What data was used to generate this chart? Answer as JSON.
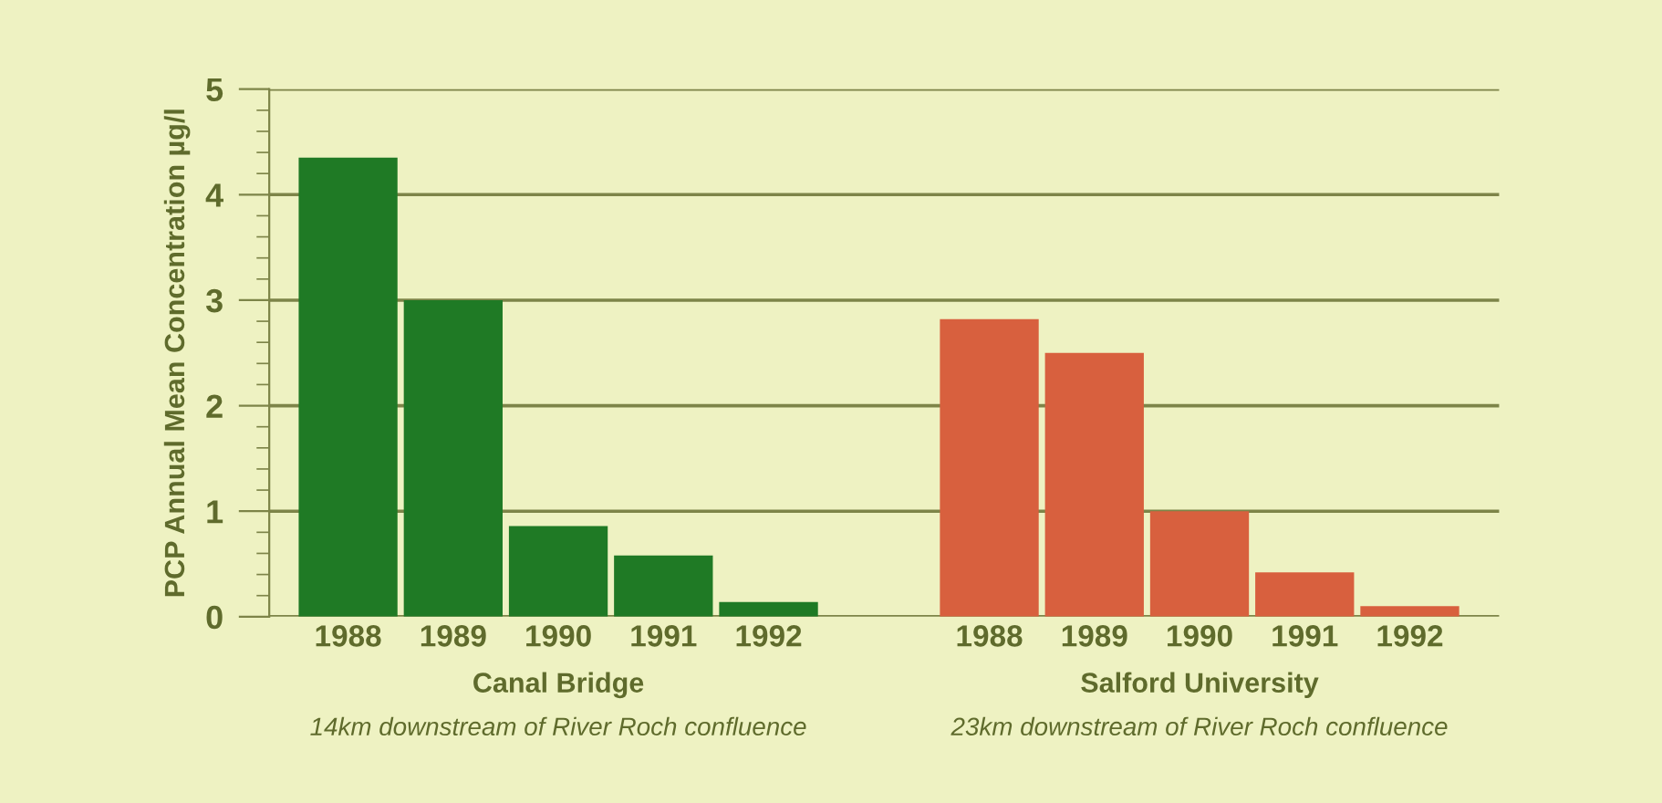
{
  "chart_data": {
    "type": "bar",
    "ylabel": "PCP Annual Mean Concentration µg/l",
    "categories": [
      "1988",
      "1989",
      "1990",
      "1991",
      "1992",
      "1988",
      "1989",
      "1990",
      "1991",
      "1992"
    ],
    "series": [
      {
        "name": "Canal Bridge",
        "color": "#1f7a25",
        "values": [
          4.35,
          3.0,
          0.86,
          0.58,
          0.14,
          null,
          null,
          null,
          null,
          null
        ]
      },
      {
        "name": "Salford University",
        "color": "#d8603e",
        "values": [
          null,
          null,
          null,
          null,
          null,
          2.82,
          2.5,
          1.0,
          0.42,
          0.1
        ]
      }
    ],
    "annotations": [
      "14km downstream of River Roch confluence",
      "23km downstream of River Roch confluence"
    ],
    "ylim": [
      0,
      5
    ],
    "yticks": [
      0,
      1,
      2,
      3,
      4,
      5
    ],
    "grid": "y",
    "legend": false
  }
}
